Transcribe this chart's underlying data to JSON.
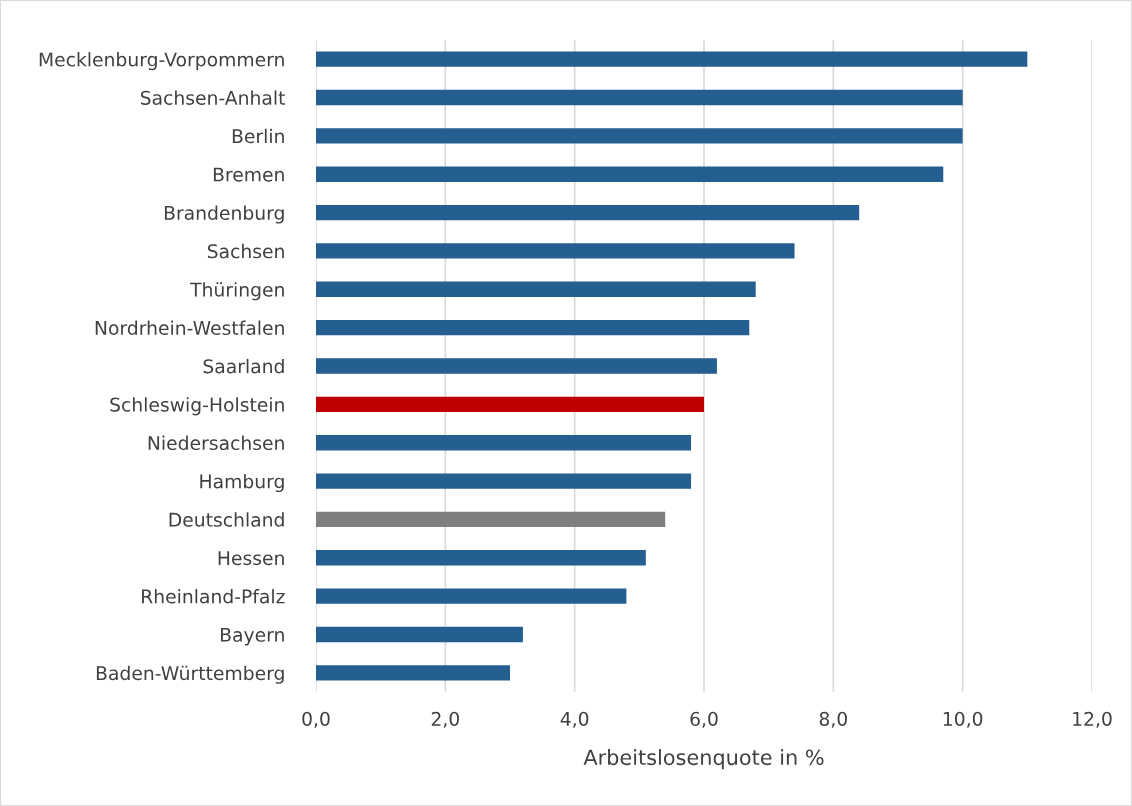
{
  "chart_data": {
    "type": "bar",
    "orientation": "horizontal",
    "xlabel": "Arbeitslosenquote in %",
    "categories": [
      "Mecklenburg-Vorpommern",
      "Sachsen-Anhalt",
      "Berlin",
      "Bremen",
      "Brandenburg",
      "Sachsen",
      "Thüringen",
      "Nordrhein-Westfalen",
      "Saarland",
      "Schleswig-Holstein",
      "Niedersachsen",
      "Hamburg",
      "Deutschland",
      "Hessen",
      "Rheinland-Pfalz",
      "Bayern",
      "Baden-Württemberg"
    ],
    "values": [
      11.0,
      10.0,
      10.0,
      9.7,
      8.4,
      7.4,
      6.8,
      6.7,
      6.2,
      6.0,
      5.8,
      5.8,
      5.4,
      5.1,
      4.8,
      3.2,
      3.0
    ],
    "colors": [
      "#255e91",
      "#255e91",
      "#255e91",
      "#255e91",
      "#255e91",
      "#255e91",
      "#255e91",
      "#255e91",
      "#255e91",
      "#c00000",
      "#255e91",
      "#255e91",
      "#7f7f7f",
      "#255e91",
      "#255e91",
      "#255e91",
      "#255e91"
    ],
    "xlim": [
      0,
      12
    ],
    "xticks": [
      {
        "value": 0,
        "label": "0,0"
      },
      {
        "value": 2,
        "label": "2,0"
      },
      {
        "value": 4,
        "label": "4,0"
      },
      {
        "value": 6,
        "label": "6,0"
      },
      {
        "value": 8,
        "label": "8,0"
      },
      {
        "value": 10,
        "label": "10,0"
      },
      {
        "value": 12,
        "label": "12,0"
      }
    ],
    "grid": "x",
    "legend": false
  }
}
